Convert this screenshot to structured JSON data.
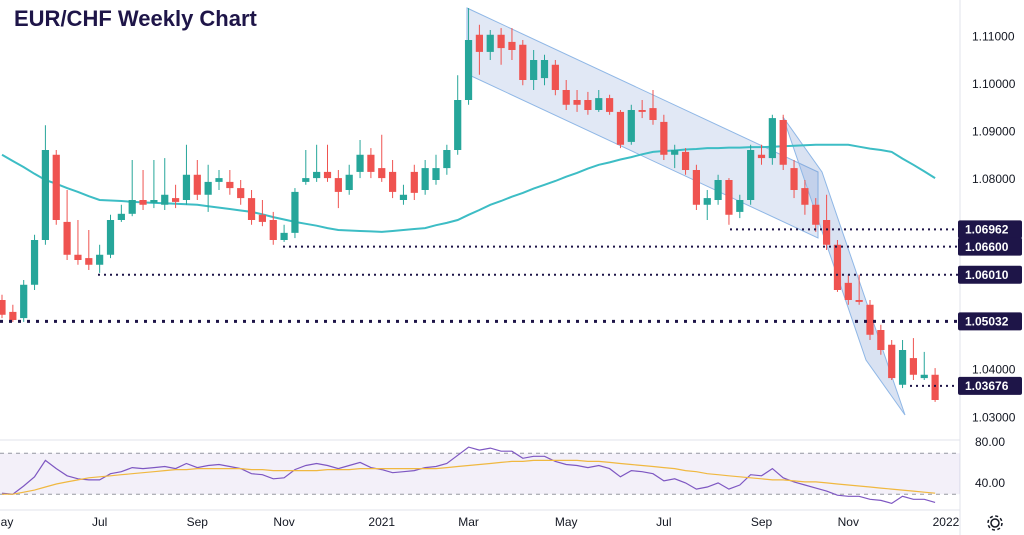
{
  "chart_data": [
    {
      "type": "candlestick",
      "title": "EUR/CHF Weekly Chart",
      "categories": [
        "May",
        null,
        null,
        null,
        null,
        null,
        null,
        null,
        null,
        "Jul",
        null,
        null,
        null,
        null,
        null,
        null,
        null,
        null,
        "Sep",
        null,
        null,
        null,
        null,
        null,
        null,
        null,
        "Nov",
        null,
        null,
        null,
        null,
        null,
        null,
        null,
        null,
        "2021",
        null,
        null,
        null,
        null,
        null,
        null,
        null,
        "Mar",
        null,
        null,
        null,
        null,
        null,
        null,
        null,
        null,
        "May",
        null,
        null,
        null,
        null,
        null,
        null,
        null,
        null,
        "Jul",
        null,
        null,
        null,
        null,
        null,
        null,
        null,
        null,
        "Sep",
        null,
        null,
        null,
        null,
        null,
        null,
        null,
        "Nov",
        null,
        null,
        null,
        null,
        null,
        null,
        null,
        null,
        "2022"
      ],
      "open": [
        1.0548,
        1.0523,
        1.051,
        1.058,
        1.0674,
        1.0853,
        1.0712,
        1.0643,
        1.0636,
        1.0622,
        1.0643,
        1.0716,
        1.0729,
        1.0758,
        1.0752,
        1.0748,
        1.0762,
        1.0758,
        1.0811,
        1.0769,
        1.0796,
        1.0796,
        1.0783,
        1.0762,
        1.0727,
        1.0716,
        1.0674,
        1.0689,
        1.0796,
        1.0804,
        1.0817,
        1.0804,
        1.0779,
        1.0817,
        1.0853,
        1.0825,
        1.0817,
        1.0758,
        1.0817,
        1.0779,
        1.08,
        1.0825,
        1.0863,
        1.0968,
        1.1105,
        1.1069,
        1.1105,
        1.109,
        1.1084,
        1.101,
        1.1014,
        1.1042,
        1.0989,
        1.0968,
        1.0968,
        1.0947,
        1.0972,
        1.0943,
        1.088,
        1.0947,
        1.0951,
        1.0922,
        1.0853,
        1.0859,
        1.0821,
        1.0748,
        1.0758,
        1.08,
        1.0733,
        1.0758,
        1.0853,
        1.0846,
        1.0926,
        1.0825,
        1.0783,
        1.0748,
        1.0716,
        1.0664,
        1.0584,
        1.0548,
        1.0538,
        1.0485,
        1.0454,
        1.037,
        1.0426,
        1.0384,
        1.0391,
        null
      ],
      "high": [
        1.0559,
        1.0538,
        1.059,
        1.0685,
        1.0915,
        1.0863,
        1.0779,
        1.0716,
        1.0695,
        1.0664,
        1.0727,
        1.0748,
        1.0842,
        1.0821,
        1.0842,
        1.0846,
        1.079,
        1.0874,
        1.0842,
        1.0832,
        1.0821,
        1.0821,
        1.08,
        1.0779,
        1.0758,
        1.0733,
        1.0706,
        1.0783,
        1.0863,
        1.0874,
        1.0874,
        1.0821,
        1.0832,
        1.0884,
        1.0867,
        1.0895,
        1.0842,
        1.079,
        1.0832,
        1.0842,
        1.0853,
        1.0874,
        1.102,
        1.1161,
        1.1126,
        1.1115,
        1.1119,
        1.1119,
        1.1094,
        1.1073,
        1.1063,
        1.1052,
        1.101,
        1.0989,
        1.0985,
        1.0989,
        1.0979,
        1.0947,
        1.0958,
        1.0968,
        1.0989,
        1.0937,
        1.0874,
        1.0867,
        1.0832,
        1.0779,
        1.0811,
        1.0804,
        1.0769,
        1.0874,
        1.0874,
        1.0937,
        1.0937,
        1.0842,
        1.08,
        1.0762,
        1.0769,
        1.0674,
        1.0601,
        1.0601,
        1.0548,
        1.0496,
        1.0464,
        1.0464,
        1.0468,
        1.0439,
        1.0405,
        null
      ],
      "low": [
        1.051,
        1.0502,
        1.0502,
        1.0569,
        1.0664,
        1.0706,
        1.0632,
        1.0622,
        1.0611,
        1.0605,
        1.0636,
        1.0712,
        1.0724,
        1.0737,
        1.0741,
        1.0737,
        1.0741,
        1.0748,
        1.0758,
        1.0733,
        1.0779,
        1.0769,
        1.0748,
        1.0706,
        1.0703,
        1.0664,
        1.067,
        1.0678,
        1.079,
        1.0796,
        1.0796,
        1.0741,
        1.0769,
        1.0804,
        1.0804,
        1.0796,
        1.0762,
        1.0748,
        1.0758,
        1.0769,
        1.079,
        1.0811,
        1.0853,
        1.0958,
        1.1021,
        1.1052,
        1.1042,
        1.1052,
        1.0999,
        1.0989,
        1.0999,
        1.0978,
        1.0947,
        1.0943,
        1.0937,
        1.0943,
        1.0937,
        1.0867,
        1.0874,
        1.093,
        1.0916,
        1.0842,
        1.0825,
        1.0811,
        1.0737,
        1.0716,
        1.0748,
        1.0706,
        1.072,
        1.0748,
        1.0832,
        1.0832,
        1.0821,
        1.0762,
        1.0727,
        1.0691,
        1.0653,
        1.0565,
        1.0538,
        1.0538,
        1.0464,
        1.0433,
        1.038,
        1.0363,
        1.038,
        1.038,
        1.0334,
        null
      ],
      "close": [
        1.0517,
        1.0506,
        1.058,
        1.0674,
        1.0863,
        1.0716,
        1.0643,
        1.0632,
        1.0622,
        1.0643,
        1.0716,
        1.0729,
        1.0758,
        1.0748,
        1.0758,
        1.0769,
        1.0754,
        1.0811,
        1.0769,
        1.0796,
        1.0804,
        1.0783,
        1.0762,
        1.0716,
        1.0712,
        1.0674,
        1.0689,
        1.0775,
        1.0804,
        1.0817,
        1.0804,
        1.0775,
        1.0811,
        1.0853,
        1.0817,
        1.0804,
        1.0775,
        1.0769,
        1.0773,
        1.0825,
        1.0825,
        1.0863,
        1.0968,
        1.1094,
        1.1069,
        1.1105,
        1.1077,
        1.1073,
        1.101,
        1.1052,
        1.1052,
        1.0989,
        1.0958,
        1.0958,
        1.0947,
        1.0972,
        1.0943,
        1.0874,
        1.0947,
        1.0943,
        1.0926,
        1.0853,
        1.0863,
        1.0821,
        1.0748,
        1.0762,
        1.08,
        1.0727,
        1.0758,
        1.0863,
        1.0846,
        1.093,
        1.0832,
        1.0779,
        1.0748,
        1.0706,
        1.0664,
        1.0569,
        1.0548,
        1.0544,
        1.0475,
        1.0443,
        1.0384,
        1.0443,
        1.0391,
        1.0391,
        1.0338,
        null
      ],
      "up_color": "#26a69a",
      "down_color": "#ef5350",
      "series": [
        {
          "color": "#3dbdc5",
          "values": [
            1.0853,
            1.084,
            1.0827,
            1.0813,
            1.08,
            1.0792,
            1.0783,
            1.0775,
            1.0766,
            1.0758,
            1.0757,
            1.0756,
            1.0754,
            1.0753,
            1.0752,
            1.0751,
            1.075,
            1.0749,
            1.0748,
            1.0745,
            1.0742,
            1.0739,
            1.0736,
            1.0733,
            1.0728,
            1.0722,
            1.0717,
            1.0712,
            1.0708,
            1.0704,
            1.0699,
            1.0695,
            1.0694,
            1.0693,
            1.0692,
            1.0691,
            1.0693,
            1.0695,
            1.0697,
            1.0699,
            1.0705,
            1.071,
            1.0716,
            1.0727,
            1.0737,
            1.0748,
            1.0756,
            1.0765,
            1.0773,
            1.0782,
            1.079,
            1.0798,
            1.0807,
            1.0815,
            1.0824,
            1.0832,
            1.0837,
            1.0843,
            1.0848,
            1.0854,
            1.0859,
            1.0861,
            1.0862,
            1.0864,
            1.0865,
            1.0867,
            1.0867,
            1.0868,
            1.0868,
            1.0869,
            1.0869,
            1.087,
            1.0871,
            1.0872,
            1.0873,
            1.0874,
            1.0874,
            1.0874,
            1.0874,
            1.087,
            1.0866,
            1.0863,
            1.0859,
            1.0845,
            1.0832,
            1.0818,
            1.0804,
            null
          ]
        }
      ],
      "ylim": [
        1.0254,
        1.1178
      ],
      "yticks": [
        {
          "value": 1.11,
          "label": "1.11000"
        },
        {
          "value": 1.1,
          "label": "1.10000"
        },
        {
          "value": 1.09,
          "label": "1.09000"
        },
        {
          "value": 1.08,
          "label": "1.08000"
        },
        {
          "value": 1.04,
          "label": "1.04000"
        },
        {
          "value": 1.03,
          "label": "1.03000"
        }
      ],
      "level_color": "#1e1548",
      "levels": [
        1.06962,
        {
          "value": 1.066,
          "label": "1.06600"
        },
        {
          "value": 1.0601,
          "label": "1.06010"
        },
        1.05032,
        1.03676
      ]
    },
    {
      "type": "line",
      "series": [
        {
          "color": "#7e57c2",
          "values": [
            31,
            30,
            38,
            47,
            63,
            55,
            48,
            45,
            44,
            44,
            50,
            52,
            56,
            55,
            56,
            57,
            55,
            60,
            56,
            58,
            59,
            57,
            55,
            50,
            49,
            45,
            46,
            54,
            58,
            60,
            58,
            55,
            58,
            61,
            56,
            54,
            51,
            52,
            53,
            56,
            57,
            60,
            68,
            76,
            73,
            75,
            72,
            72,
            65,
            67,
            67,
            62,
            59,
            58,
            56,
            58,
            55,
            47,
            53,
            52,
            50,
            43,
            45,
            41,
            35,
            37,
            41,
            35,
            39,
            49,
            48,
            55,
            46,
            42,
            39,
            36,
            33,
            29,
            28,
            28,
            25,
            24,
            21,
            28,
            25,
            25,
            22,
            null
          ]
        },
        {
          "color": "#f0b840",
          "values": [
            30,
            30,
            32,
            34,
            37,
            40,
            42,
            44,
            46,
            47,
            48,
            49,
            50,
            51,
            52,
            53,
            54,
            54,
            55,
            55,
            55,
            55,
            55,
            54,
            54,
            53,
            53,
            53,
            53,
            53,
            54,
            54,
            54,
            55,
            55,
            55,
            55,
            55,
            55,
            55,
            55,
            56,
            57,
            58,
            59,
            60,
            61,
            62,
            62,
            63,
            63,
            63,
            63,
            63,
            62,
            62,
            61,
            60,
            59,
            58,
            57,
            56,
            55,
            53,
            52,
            50,
            49,
            48,
            47,
            46,
            45,
            44,
            44,
            43,
            42,
            42,
            41,
            40,
            39,
            38,
            37,
            36,
            35,
            34,
            33,
            32,
            31,
            null
          ]
        }
      ],
      "ylim": [
        14.6,
        82.9
      ],
      "yticks": [
        {
          "value": 80,
          "label": "80.00"
        },
        {
          "value": 40,
          "label": "40.00"
        }
      ],
      "band": [
        30,
        70
      ]
    }
  ]
}
